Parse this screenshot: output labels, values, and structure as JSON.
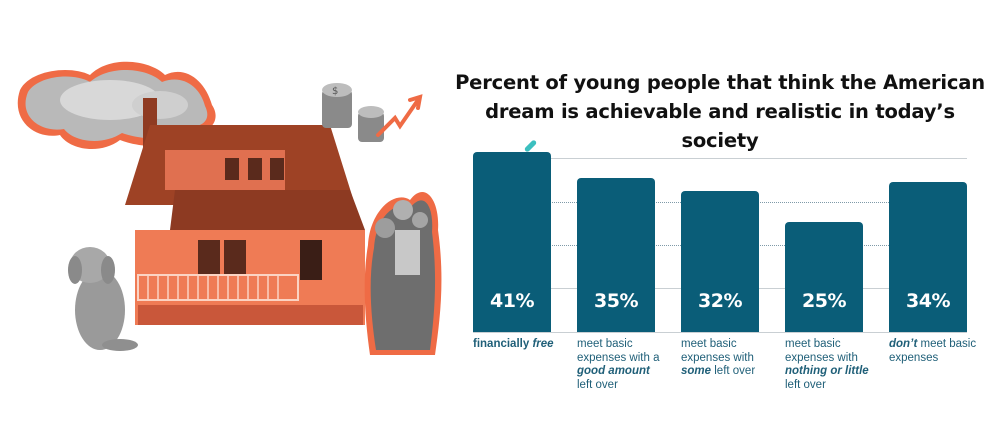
{
  "title": "Percent of young people that think the American dream is achievable and realistic in today’s society",
  "colors": {
    "bar": "#0a5d78",
    "label_text": "#1f5f78",
    "accent_orange": "#ef6b45",
    "accent_teal": "#3bbfbf",
    "gridline": "#c9cfd3"
  },
  "illustration": {
    "elements": [
      "cloud",
      "house",
      "dollar-coin-stacks",
      "upward-trend-arrow",
      "dog",
      "family"
    ]
  },
  "bars": [
    {
      "value_label": "41%",
      "value": 41,
      "label_parts": [
        {
          "t": "financially ",
          "s": "b"
        },
        {
          "t": "free",
          "s": "bi"
        }
      ]
    },
    {
      "value_label": "35%",
      "value": 35,
      "label_parts": [
        {
          "t": "meet basic expenses with a ",
          "s": ""
        },
        {
          "t": "good amount",
          "s": "bi"
        },
        {
          "t": " left over",
          "s": ""
        }
      ]
    },
    {
      "value_label": "32%",
      "value": 32,
      "label_parts": [
        {
          "t": "meet basic expenses with ",
          "s": ""
        },
        {
          "t": "some",
          "s": "bi"
        },
        {
          "t": " left over",
          "s": ""
        }
      ]
    },
    {
      "value_label": "25%",
      "value": 25,
      "label_parts": [
        {
          "t": "meet basic expenses with ",
          "s": ""
        },
        {
          "t": "nothing or little",
          "s": "bi"
        },
        {
          "t": " left over",
          "s": ""
        }
      ]
    },
    {
      "value_label": "34%",
      "value": 34,
      "label_parts": [
        {
          "t": "don’t",
          "s": "bi"
        },
        {
          "t": " meet basic expenses",
          "s": ""
        }
      ]
    }
  ],
  "chart_data": {
    "type": "bar",
    "title": "Percent of young people that think the American dream is achievable and realistic in today’s society",
    "categories": [
      "financially free",
      "meet basic expenses with a good amount left over",
      "meet basic expenses with some left over",
      "meet basic expenses with nothing or little left over",
      "don’t meet basic expenses"
    ],
    "values": [
      41,
      35,
      32,
      25,
      34
    ],
    "value_labels": [
      "41%",
      "35%",
      "32%",
      "25%",
      "34%"
    ],
    "xlabel": "",
    "ylabel": "",
    "ylim": [
      0,
      45
    ],
    "grid": true,
    "legend": null
  }
}
